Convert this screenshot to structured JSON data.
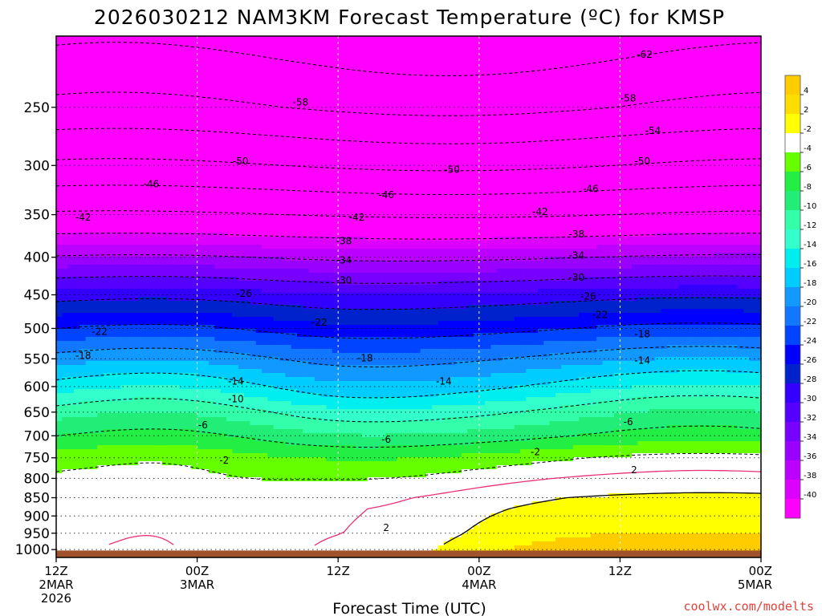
{
  "chart_data": {
    "type": "heatmap",
    "title": "2026030212 NAM3KM Forecast Temperature (ºC) for KMSP",
    "xlabel": "Forecast Time (UTC)",
    "ylabel": "",
    "x_ticks": [
      {
        "hours": 0,
        "lines": [
          "12Z",
          "2MAR",
          "2026"
        ]
      },
      {
        "hours": 12,
        "lines": [
          "00Z",
          "3MAR"
        ]
      },
      {
        "hours": 24,
        "lines": [
          "12Z"
        ]
      },
      {
        "hours": 36,
        "lines": [
          "00Z",
          "4MAR"
        ]
      },
      {
        "hours": 48,
        "lines": [
          "12Z"
        ]
      },
      {
        "hours": 60,
        "lines": [
          "00Z",
          "5MAR"
        ]
      }
    ],
    "xlim": [
      0,
      60
    ],
    "y_ticks": [
      250,
      300,
      350,
      400,
      450,
      500,
      550,
      600,
      650,
      700,
      750,
      800,
      850,
      900,
      950,
      1000
    ],
    "ylim": [
      200,
      1025
    ],
    "y_scale": "log",
    "grid": true,
    "colorbar": {
      "levels": [
        4,
        2,
        -2,
        -4,
        -6,
        -8,
        -10,
        -12,
        -14,
        -16,
        -18,
        -20,
        -22,
        -24,
        -26,
        -28,
        -30,
        -32,
        -34,
        -36,
        -38,
        -40
      ],
      "colors": [
        "#ffdd00",
        "#ffff00",
        "#ffffff",
        "#66ff00",
        "#22ee44",
        "#22ee77",
        "#33ffaa",
        "#33ffcc",
        "#00eeee",
        "#00ccff",
        "#1199ff",
        "#1177ff",
        "#0044ff",
        "#0000ff",
        "#0022cc",
        "#3300ff",
        "#5500ff",
        "#7700ff",
        "#9900ff",
        "#bb00ff",
        "#dd00ff",
        "#ff00ff"
      ],
      "top_color": "#ffcc00",
      "bottom_color": "#ff00ff"
    },
    "contour_labels": [
      {
        "x": 50.1,
        "p": 212,
        "t": "-62"
      },
      {
        "x": 20.8,
        "p": 246,
        "t": "-58"
      },
      {
        "x": 48.7,
        "p": 243,
        "t": "-58"
      },
      {
        "x": 50.8,
        "p": 269,
        "t": "-54"
      },
      {
        "x": 15.7,
        "p": 296,
        "t": "-50"
      },
      {
        "x": 33.7,
        "p": 304,
        "t": "-50"
      },
      {
        "x": 49.9,
        "p": 296,
        "t": "-50"
      },
      {
        "x": 8.1,
        "p": 318,
        "t": "-46"
      },
      {
        "x": 28.1,
        "p": 329,
        "t": "-46"
      },
      {
        "x": 45.5,
        "p": 323,
        "t": "-46"
      },
      {
        "x": 2.3,
        "p": 353,
        "t": "-42"
      },
      {
        "x": 25.6,
        "p": 353,
        "t": "-42"
      },
      {
        "x": 41.2,
        "p": 347,
        "t": "-42"
      },
      {
        "x": 24.5,
        "p": 380,
        "t": "-38"
      },
      {
        "x": 44.3,
        "p": 372,
        "t": "-38"
      },
      {
        "x": 24.5,
        "p": 404,
        "t": "-34"
      },
      {
        "x": 44.3,
        "p": 398,
        "t": "-34"
      },
      {
        "x": 24.5,
        "p": 430,
        "t": "-30"
      },
      {
        "x": 44.3,
        "p": 426,
        "t": "-30"
      },
      {
        "x": 16.0,
        "p": 448,
        "t": "-26"
      },
      {
        "x": 45.3,
        "p": 452,
        "t": "-26"
      },
      {
        "x": 3.7,
        "p": 505,
        "t": "-22"
      },
      {
        "x": 22.4,
        "p": 491,
        "t": "-22"
      },
      {
        "x": 46.3,
        "p": 479,
        "t": "-22"
      },
      {
        "x": 2.3,
        "p": 545,
        "t": "-18"
      },
      {
        "x": 26.3,
        "p": 549,
        "t": "-18"
      },
      {
        "x": 49.9,
        "p": 509,
        "t": "-18"
      },
      {
        "x": 15.3,
        "p": 590,
        "t": "-14"
      },
      {
        "x": 33.0,
        "p": 590,
        "t": "-14"
      },
      {
        "x": 49.9,
        "p": 553,
        "t": "-14"
      },
      {
        "x": 15.3,
        "p": 624,
        "t": "-10"
      },
      {
        "x": 12.5,
        "p": 677,
        "t": "-6"
      },
      {
        "x": 28.1,
        "p": 708,
        "t": "-6"
      },
      {
        "x": 48.7,
        "p": 670,
        "t": "-6"
      },
      {
        "x": 14.3,
        "p": 756,
        "t": "-2"
      },
      {
        "x": 40.8,
        "p": 736,
        "t": "-2"
      },
      {
        "x": 28.1,
        "p": 934,
        "t": "2"
      },
      {
        "x": 49.2,
        "p": 779,
        "t": "2"
      }
    ]
  },
  "credit": "coolwx.com/modelts"
}
